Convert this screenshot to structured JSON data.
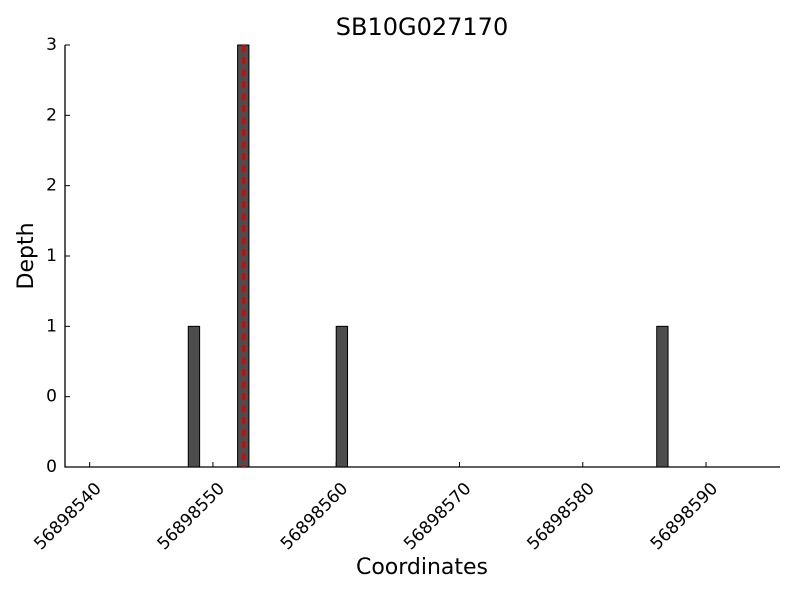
{
  "chart_data": {
    "type": "bar",
    "title": "SB10G027170",
    "x_label": "Coordinates",
    "y_label": "Depth",
    "x": [
      56898548,
      56898552,
      56898560,
      56898586
    ],
    "values": [
      1,
      3,
      1,
      1
    ],
    "color": "#4d4d4d",
    "vline": {
      "x": 56898552.5,
      "color": "#e00000"
    },
    "xlim": [
      56898538,
      56898596
    ],
    "xticks": [
      56898540,
      56898550,
      56898560,
      56898570,
      56898580,
      56898590
    ],
    "ylim": [
      0,
      3
    ],
    "yticks": [
      0,
      {
        "value": 0.5,
        "label": "0"
      },
      1,
      {
        "value": 1.5,
        "label": "1"
      },
      2,
      {
        "value": 2.5,
        "label": "2"
      },
      3
    ],
    "grid": false
  }
}
